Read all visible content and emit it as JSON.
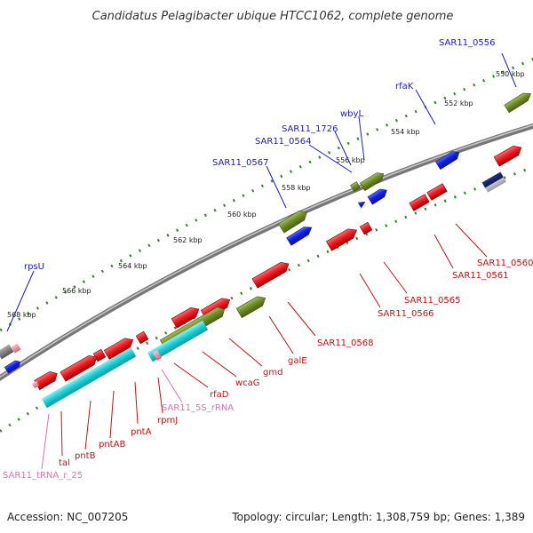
{
  "title": "Candidatus Pelagibacter ubique HTCC1062, complete genome",
  "footer": {
    "accession": "Accession: NC_007205",
    "summary": "Topology: circular; Length: 1,308,759 bp; Genes: 1,389"
  },
  "colors": {
    "background": "#ffffff",
    "backbone": "#888888",
    "gene_red": "#e8232a",
    "gene_green": "#6f8c2a",
    "gene_blue": "#1020e0",
    "gene_cyan": "#1ccfd8",
    "gene_navy": "#10206e",
    "gene_pink": "#f08090",
    "label_blue": "#1a1acc",
    "label_red": "#cc1111",
    "label_pink": "#e070b0",
    "tick_green": "#2e8a1e"
  },
  "ticks": [
    "550 kbp",
    "552 kbp",
    "554 kbp",
    "556 kbp",
    "558 kbp",
    "560 kbp",
    "562 kbp",
    "564 kbp",
    "566 kbp",
    "568 kbp"
  ],
  "labels_upper": [
    "SAR11_0556",
    "rfaK",
    "wbyL",
    "SAR11_1726",
    "SAR11_0564",
    "SAR11_0567",
    "rpsU"
  ],
  "labels_lower": [
    "SAR11_0560",
    "SAR11_0561",
    "SAR11_0565",
    "SAR11_0566",
    "SAR11_0568",
    "galE",
    "gmd",
    "wcaG",
    "rfaD",
    "SAR11_5S_rRNA",
    "rpmJ",
    "pntA",
    "pntAB",
    "pntB",
    "tal",
    "SAR11_tRNA_r_25"
  ]
}
